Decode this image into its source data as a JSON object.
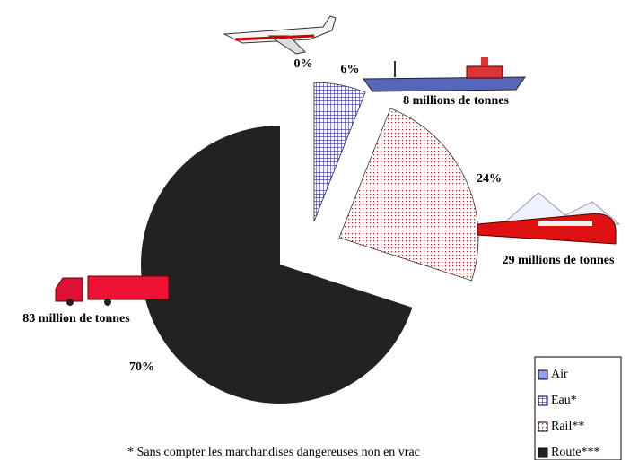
{
  "chart_data": {
    "type": "pie",
    "categories": [
      "Air",
      "Eau*",
      "Rail**",
      "Route***"
    ],
    "values": [
      0,
      6,
      24,
      70
    ],
    "value_labels": [
      "0%",
      "6%",
      "24%",
      "70%"
    ],
    "colors": [
      "#9999ff",
      "#333399",
      "#993333",
      "#222222"
    ],
    "annotations": [
      "8 millions de tonnes",
      "29 millions de tonnes",
      "83 million de tonnes"
    ],
    "footnote": "* Sans compter les marchandises dangereuses non en vrac",
    "legend": "bottom-right"
  }
}
